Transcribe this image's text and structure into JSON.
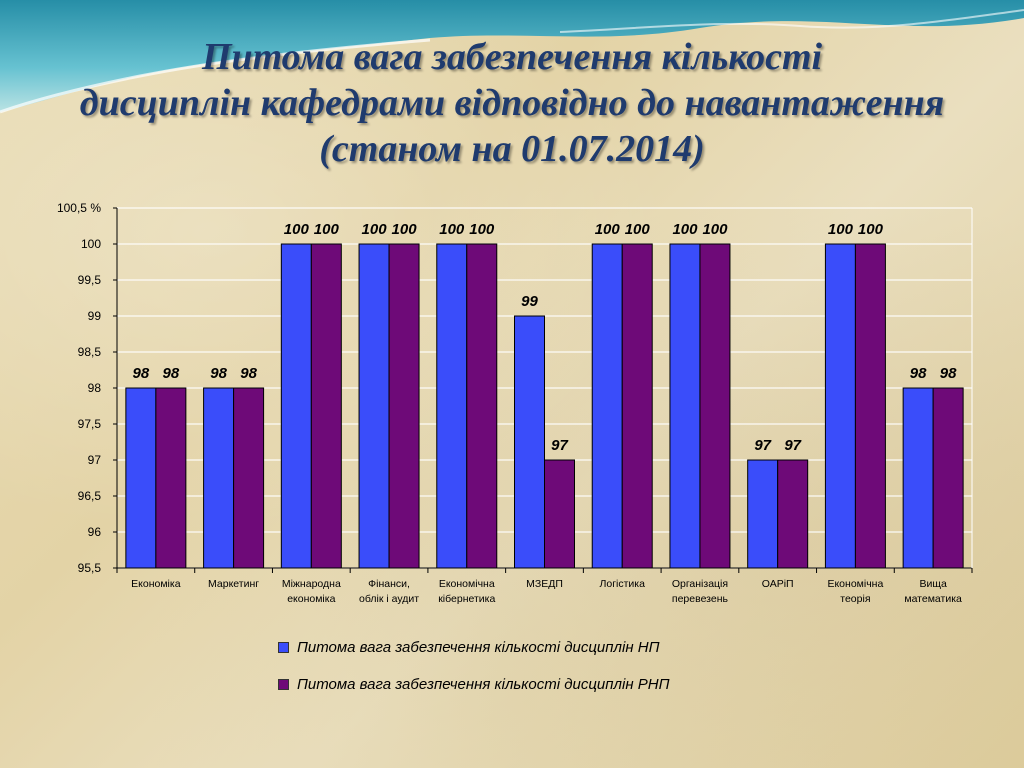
{
  "title": {
    "line1": "Питома вага забезпечення кількості",
    "line2": "дисциплін кафедрами відповідно до навантаження",
    "line3": "(станом на 01.07.2014)"
  },
  "chart_data": {
    "type": "bar",
    "ylabel": "%",
    "ylim": [
      95.5,
      100.5
    ],
    "yticks": [
      "95,5",
      "96",
      "96,5",
      "97",
      "97,5",
      "98",
      "98,5",
      "99",
      "99,5",
      "100",
      "100,5"
    ],
    "grid": true,
    "legend_position": "bottom",
    "categories": [
      [
        "Економіка"
      ],
      [
        "Маркетинг"
      ],
      [
        "Міжнародна",
        "економіка"
      ],
      [
        "Фінанси,",
        "облік і аудит"
      ],
      [
        "Економічна",
        "кібернетика"
      ],
      [
        "МЗЕДП"
      ],
      [
        "Логістика"
      ],
      [
        "Організація",
        "перевезень"
      ],
      [
        "ОАРіП"
      ],
      [
        "Економічна",
        "теорія"
      ],
      [
        "Вища",
        "математика"
      ]
    ],
    "series": [
      {
        "name": "Питома вага забезпечення кількості дисциплін НП",
        "color": "#3a4dfa",
        "values": [
          98,
          98,
          100,
          100,
          100,
          99,
          100,
          100,
          97,
          100,
          98
        ]
      },
      {
        "name": "Питома вага забезпечення кількості дисциплін РНП",
        "color": "#6e0a78",
        "values": [
          98,
          98,
          100,
          100,
          100,
          97,
          100,
          100,
          97,
          100,
          98
        ]
      }
    ]
  },
  "colors": {
    "title": "#1f3b6e",
    "grid": "#ffffff",
    "axis": "#000000"
  }
}
